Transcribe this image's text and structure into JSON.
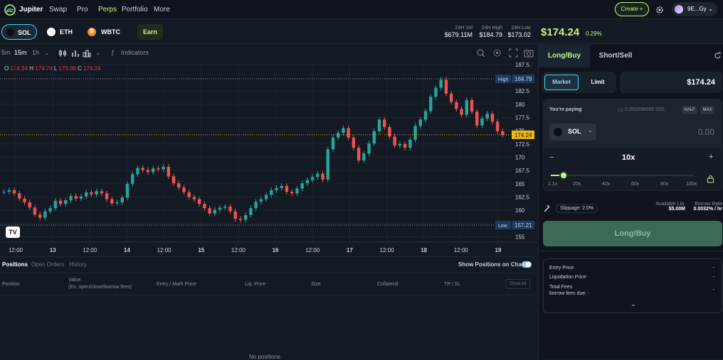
{
  "nav": {
    "brand": "Jupiter",
    "links": [
      "Swap",
      "Pro",
      "Perps",
      "Portfolio",
      "More"
    ],
    "active": "Perps",
    "create_label": "Create +",
    "wallet_label": "9E...Gy"
  },
  "tokens": [
    {
      "symbol": "SOL",
      "active": true
    },
    {
      "symbol": "ETH",
      "active": false
    },
    {
      "symbol": "WBTC",
      "active": false
    }
  ],
  "earn_label": "Earn",
  "stats": {
    "vol_label": "24H Vol",
    "vol_value": "$679.11M",
    "high_label": "24H High",
    "high_value": "$184.79",
    "low_label": "24H Low",
    "low_value": "$173.02"
  },
  "price": {
    "value": "$174.24",
    "change": "0.29%"
  },
  "toolbar": {
    "timeframes": [
      "5m",
      "15m",
      "1h"
    ],
    "active_tf": "15m",
    "indicators_label": "Indicators"
  },
  "chart_data": {
    "type": "candlestick",
    "ohlc_labels": {
      "o": "O",
      "o_val": "174.34",
      "h": "H",
      "h_val": "174.74",
      "l": "L",
      "l_val": "173.36",
      "c": "C",
      "c_val": "174.24"
    },
    "y_ticks": [
      "187.5",
      "182.5",
      "180",
      "177.5",
      "175",
      "172.5",
      "170",
      "167.5",
      "165",
      "162.5",
      "160",
      "157.5",
      "155"
    ],
    "ylim": [
      154,
      188
    ],
    "x_ticks": [
      "12:00",
      "13",
      "12:00",
      "14",
      "12:00",
      "15",
      "12:00",
      "16",
      "12:00",
      "17",
      "12:00",
      "18",
      "12:00",
      "19"
    ],
    "high_label": "High",
    "high_value": "184.79",
    "high": 184.79,
    "low_label": "Low",
    "low_value": "157.21",
    "low": 157.21,
    "last_value": "174.24",
    "last": 174.24,
    "closes": [
      163.5,
      163.8,
      163.2,
      162.2,
      161.5,
      160.5,
      159.2,
      158.6,
      159.8,
      160.4,
      161.8,
      161.2,
      161.9,
      162.7,
      162.2,
      162.6,
      163.4,
      163.0,
      163.6,
      163.2,
      162.1,
      161.3,
      161.5,
      162.4,
      165.0,
      166.8,
      168.0,
      167.6,
      167.2,
      167.9,
      167.7,
      168.2,
      166.4,
      165.1,
      164.3,
      163.4,
      162.5,
      162.1,
      161.2,
      160.4,
      159.4,
      160.1,
      160.5,
      160.7,
      159.8,
      158.4,
      158.2,
      159.1,
      160.4,
      161.6,
      162.1,
      162.9,
      163.8,
      164.2,
      164.6,
      163.5,
      163.2,
      164.1,
      165.1,
      165.7,
      166.3,
      166.9,
      165.8,
      171.5,
      173.7,
      174.6,
      175.5,
      173.7,
      171.8,
      169.4,
      170.7,
      172.6,
      174.9,
      177.1,
      175.7,
      173.9,
      172.2,
      172.5,
      171.8,
      173.3,
      175.9,
      177.1,
      178.7,
      181.4,
      183.1,
      184.6,
      182.0,
      180.4,
      179.1,
      178.0,
      180.8,
      178.6,
      176.0,
      177.3,
      178.2,
      176.7,
      174.9,
      174.2
    ]
  },
  "positions": {
    "tabs": [
      "Positions",
      "Open Orders",
      "History"
    ],
    "active_tab": "Positions",
    "show_label": "Show Positions on Chart",
    "columns": [
      "Position",
      "Value",
      "Entry / Mark Price",
      "Liq. Price",
      "Size",
      "Collateral",
      "TP / SL"
    ],
    "value_sub": "(Ex. open/close/borrow fees)",
    "close_all": "Close All",
    "empty": "No positions"
  },
  "order": {
    "tab_long": "Long/Buy",
    "tab_short": "Short/Sell",
    "market_label": "Market",
    "limit_label": "Limit",
    "price_value": "$174.24",
    "paying_label": "You're paying",
    "balance": "0.002698669 SOL",
    "half": "HALF",
    "max": "MAX",
    "pay_token": "SOL",
    "amount": "0.00",
    "leverage": "10x",
    "leverage_level": 0.09,
    "lev_ticks": [
      "1.1x",
      "20x",
      "40x",
      "60x",
      "80x",
      "100x"
    ],
    "slippage": "Slippage: 2.0%",
    "avail_label": "Available Liq.",
    "avail_value": "$5.00M",
    "borrow_label": "Borrow Rate",
    "borrow_value": "0.0032% / hr",
    "submit": "Long/Buy",
    "entry_label": "Entry Price",
    "entry_value": "-",
    "liq_label": "Liquidation Price",
    "liq_value": "-",
    "fees_label": "Total Fees",
    "fees_value": "-",
    "borrow_due_label": "borrow fees due: -"
  }
}
